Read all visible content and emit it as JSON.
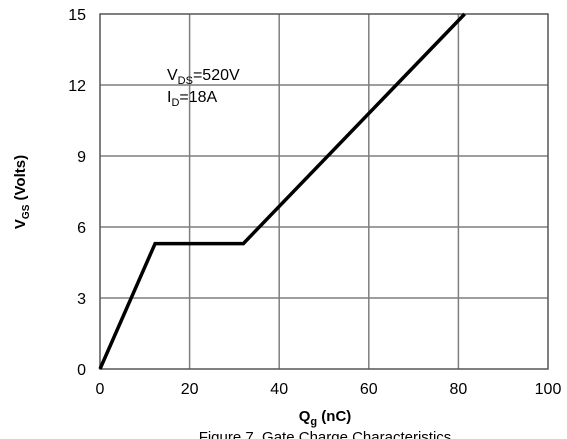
{
  "chart_data": {
    "type": "line",
    "title": "",
    "xlabel": {
      "main": "Q",
      "sub": "g",
      "rest": " (nC)"
    },
    "ylabel": {
      "main": "V",
      "sub": "GS",
      "rest": " (Volts)"
    },
    "xlim": [
      0,
      100
    ],
    "ylim": [
      0,
      15
    ],
    "xticks": [
      0,
      20,
      40,
      60,
      80,
      100
    ],
    "yticks": [
      0,
      3,
      6,
      9,
      12,
      15
    ],
    "grid": true,
    "legend": "none",
    "series": [
      {
        "color": "#000000",
        "x": [
          0,
          12.3,
          32.0,
          81.4
        ],
        "y": [
          0,
          5.3,
          5.3,
          15.0
        ]
      }
    ],
    "annotations": [
      {
        "main": "V",
        "sub": "DS",
        "rest": "=520V"
      },
      {
        "main": "I",
        "sub": "D",
        "rest": "=18A"
      }
    ],
    "caption": "Figure 7. Gate Charge Characteristics"
  }
}
